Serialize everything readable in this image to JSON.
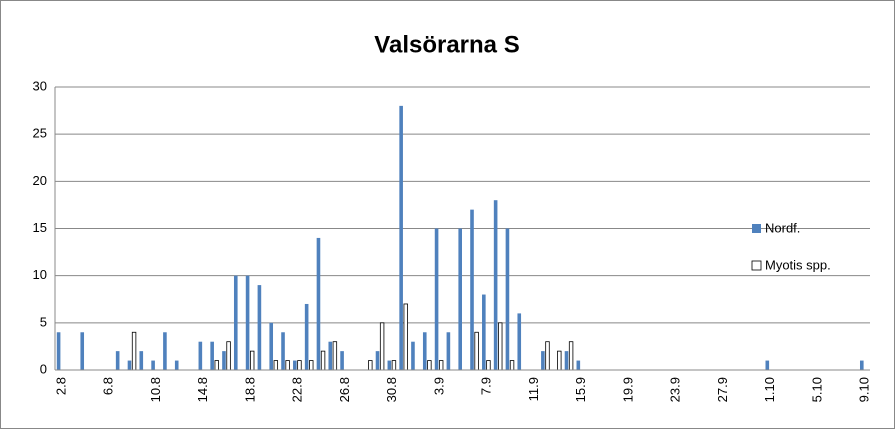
{
  "chart_data": {
    "type": "bar",
    "title": "Valsörarna S",
    "categories": [
      "2.8",
      null,
      null,
      null,
      "6.8",
      null,
      null,
      null,
      "10.8",
      null,
      null,
      null,
      "14.8",
      null,
      null,
      null,
      "18.8",
      null,
      null,
      null,
      "22.8",
      null,
      null,
      null,
      "26.8",
      null,
      null,
      null,
      "30.8",
      null,
      null,
      null,
      "3.9",
      null,
      null,
      null,
      "7.9",
      null,
      null,
      null,
      "11.9",
      null,
      null,
      null,
      "15.9",
      null,
      null,
      null,
      "19.9",
      null,
      null,
      null,
      "23.9",
      null,
      null,
      null,
      "27.9",
      null,
      null,
      null,
      "1.10",
      null,
      null,
      null,
      "5.10",
      null,
      null,
      null,
      "9.10"
    ],
    "series": [
      {
        "name": "Nordf.",
        "color": "#4f81bd",
        "values": [
          4,
          0,
          4,
          0,
          0,
          2,
          1,
          2,
          1,
          4,
          1,
          0,
          3,
          3,
          2,
          10,
          10,
          9,
          5,
          4,
          1,
          7,
          14,
          3,
          2,
          0,
          0,
          2,
          1,
          28,
          3,
          4,
          15,
          4,
          15,
          17,
          8,
          18,
          15,
          6,
          0,
          2,
          0,
          2,
          1,
          0,
          0,
          0,
          0,
          0,
          0,
          0,
          0,
          0,
          0,
          0,
          0,
          0,
          0,
          0,
          1,
          0,
          0,
          0,
          0,
          0,
          0,
          0,
          1
        ]
      },
      {
        "name": "Myotis spp.",
        "color": "#ffffff",
        "values": [
          0,
          0,
          0,
          0,
          0,
          0,
          4,
          0,
          0,
          0,
          0,
          0,
          0,
          1,
          3,
          0,
          2,
          0,
          1,
          1,
          1,
          1,
          2,
          3,
          0,
          0,
          1,
          5,
          1,
          7,
          0,
          1,
          1,
          0,
          0,
          4,
          1,
          5,
          1,
          0,
          0,
          3,
          2,
          3,
          0,
          0,
          0,
          0,
          0,
          0,
          0,
          0,
          0,
          0,
          0,
          0,
          0,
          0,
          0,
          0,
          0,
          0,
          0,
          0,
          0,
          0,
          0,
          0,
          0
        ]
      }
    ],
    "ylim": [
      0,
      30
    ],
    "yticks": [
      0,
      5,
      10,
      15,
      20,
      25,
      30
    ],
    "grid": true,
    "legend": "right"
  }
}
